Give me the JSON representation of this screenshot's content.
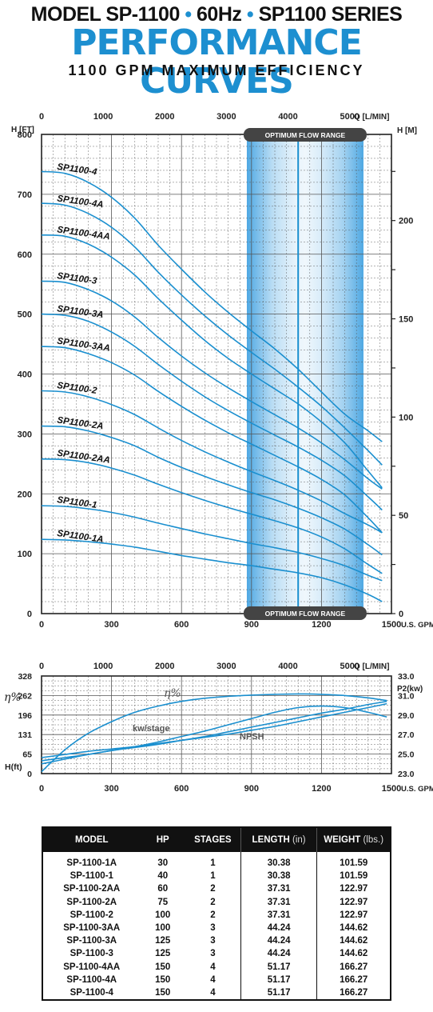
{
  "header": {
    "line1_a": "MODEL SP-1100",
    "line1_b": "60Hz",
    "line1_c": "SP1100 SERIES",
    "line1_sep": "•",
    "line2": "PERFORMANCE CURVES",
    "line3": "1100 GPM MAXIMUM EFFICIENCY"
  },
  "chart_data": [
    {
      "type": "line",
      "xlabel": "U.S. GPM",
      "x2label": "Q [L/MIN]",
      "ylabel": "H [FT]",
      "y2label": "H [M]",
      "xlim": [
        0,
        1500
      ],
      "x_ticks": [
        0,
        300,
        600,
        900,
        1200,
        1500
      ],
      "ylim": [
        0,
        800
      ],
      "y_ticks": [
        0,
        100,
        200,
        300,
        400,
        500,
        600,
        700,
        800
      ],
      "x2_ticks": [
        0,
        1000,
        2000,
        3000,
        4000,
        5000
      ],
      "y2_ticks": [
        0,
        50,
        100,
        150,
        200
      ],
      "optimum_flow_range": [
        880,
        1380
      ],
      "optimum_flow_line": 1100,
      "optimum_label": "OPTIMUM FLOW RANGE",
      "x": [
        0,
        100,
        200,
        300,
        400,
        500,
        600,
        700,
        800,
        900,
        1000,
        1100,
        1200,
        1300,
        1400,
        1460
      ],
      "series": [
        {
          "name": "SP1100-4",
          "values": [
            738,
            735,
            720,
            695,
            660,
            615,
            575,
            537,
            503,
            472,
            442,
            408,
            370,
            333,
            305,
            287
          ]
        },
        {
          "name": "SP1100-4A",
          "values": [
            685,
            682,
            668,
            645,
            612,
            570,
            532,
            497,
            465,
            436,
            408,
            378,
            346,
            310,
            272,
            248
          ]
        },
        {
          "name": "SP1100-4AA",
          "values": [
            632,
            630,
            617,
            595,
            565,
            526,
            490,
            456,
            426,
            400,
            375,
            350,
            320,
            285,
            238,
            210
          ]
        },
        {
          "name": "SP1100-3",
          "values": [
            555,
            553,
            541,
            522,
            495,
            461,
            430,
            402,
            377,
            354,
            332,
            310,
            285,
            257,
            225,
            208
          ]
        },
        {
          "name": "SP1100-3A",
          "values": [
            500,
            498,
            488,
            470,
            446,
            416,
            388,
            362,
            339,
            318,
            298,
            278,
            256,
            230,
            195,
            173
          ]
        },
        {
          "name": "SP1100-3AA",
          "values": [
            446,
            444,
            434,
            419,
            398,
            371,
            346,
            323,
            302,
            283,
            264,
            245,
            224,
            198,
            160,
            135
          ]
        },
        {
          "name": "SP1100-2",
          "values": [
            372,
            370,
            362,
            349,
            332,
            310,
            289,
            270,
            253,
            237,
            222,
            206,
            188,
            167,
            148,
            135
          ]
        },
        {
          "name": "SP1100-2A",
          "values": [
            313,
            312,
            305,
            294,
            280,
            261,
            244,
            229,
            215,
            202,
            190,
            176,
            160,
            141,
            115,
            98
          ]
        },
        {
          "name": "SP1100-2AA",
          "values": [
            258,
            257,
            252,
            243,
            231,
            216,
            202,
            189,
            177,
            166,
            155,
            143,
            128,
            108,
            82,
            67
          ]
        },
        {
          "name": "SP1100-1",
          "values": [
            180,
            179,
            175,
            169,
            161,
            151,
            142,
            133,
            125,
            117,
            110,
            102,
            92,
            80,
            64,
            55
          ]
        },
        {
          "name": "SP1100-1A",
          "values": [
            124,
            123,
            120,
            116,
            111,
            104,
            97,
            91,
            85,
            80,
            74,
            68,
            60,
            48,
            32,
            20
          ]
        }
      ]
    },
    {
      "type": "line",
      "xlabel": "U.S. GPM",
      "x2label": "Q [L/MIN]",
      "ylabel": "H(ft)",
      "y2label": "P2(kw)",
      "eta_label": "η%",
      "xlim": [
        0,
        1500
      ],
      "x_ticks": [
        0,
        300,
        600,
        900,
        1200,
        1500
      ],
      "x2_ticks": [
        0,
        1000,
        2000,
        3000,
        4000,
        5000
      ],
      "y_ticks": [
        "328",
        "262",
        "196",
        "131",
        "65",
        "0"
      ],
      "y2_ticks": [
        "33.0",
        "31.0",
        "29.0",
        "27.0",
        "25.0",
        "23.0"
      ],
      "labels": {
        "eta": "η%",
        "kw": "kw/stage",
        "npsh": "NPSH"
      },
      "x": [
        0,
        100,
        200,
        300,
        400,
        500,
        600,
        700,
        800,
        900,
        1000,
        1100,
        1200,
        1300,
        1400,
        1480
      ],
      "series": [
        {
          "name": "η%",
          "values": [
            0,
            0.28,
            0.49,
            0.64,
            0.76,
            0.84,
            0.9,
            0.94,
            0.965,
            0.98,
            0.99,
            0.995,
            0.99,
            0.975,
            0.945,
            0.91
          ]
        },
        {
          "name": "kw/stage",
          "values": [
            0.14,
            0.18,
            0.22,
            0.27,
            0.32,
            0.38,
            0.45,
            0.52,
            0.6,
            0.68,
            0.76,
            0.82,
            0.84,
            0.82,
            0.76,
            0.7
          ]
        },
        {
          "name": "NPSH",
          "values": [
            0.1,
            0.16,
            0.22,
            0.27,
            0.31,
            0.35,
            0.4,
            0.45,
            0.51,
            0.57,
            0.63,
            0.69,
            0.75,
            0.8,
            0.86,
            0.9
          ]
        },
        {
          "name": "H(ft)",
          "values": [
            0.18,
            0.22,
            0.26,
            0.29,
            0.32,
            0.36,
            0.4,
            0.44,
            0.48,
            0.53,
            0.58,
            0.64,
            0.7,
            0.76,
            0.82,
            0.87
          ]
        }
      ]
    }
  ],
  "spec_table": {
    "headers": [
      {
        "label": "MODEL",
        "unit": ""
      },
      {
        "label": "HP",
        "unit": ""
      },
      {
        "label": "STAGES",
        "unit": ""
      },
      {
        "label": "LENGTH",
        "unit": "(in)"
      },
      {
        "label": "WEIGHT",
        "unit": "(lbs.)"
      }
    ],
    "rows": [
      [
        "SP-1100-1A",
        "30",
        "1",
        "30.38",
        "101.59"
      ],
      [
        "SP-1100-1",
        "40",
        "1",
        "30.38",
        "101.59"
      ],
      [
        "SP-1100-2AA",
        "60",
        "2",
        "37.31",
        "122.97"
      ],
      [
        "SP-1100-2A",
        "75",
        "2",
        "37.31",
        "122.97"
      ],
      [
        "SP-1100-2",
        "100",
        "2",
        "37.31",
        "122.97"
      ],
      [
        "SP-1100-3AA",
        "100",
        "3",
        "44.24",
        "144.62"
      ],
      [
        "SP-1100-3A",
        "125",
        "3",
        "44.24",
        "144.62"
      ],
      [
        "SP-1100-3",
        "125",
        "3",
        "44.24",
        "144.62"
      ],
      [
        "SP-1100-4AA",
        "150",
        "4",
        "51.17",
        "166.27"
      ],
      [
        "SP-1100-4A",
        "150",
        "4",
        "51.17",
        "166.27"
      ],
      [
        "SP-1100-4",
        "150",
        "4",
        "51.17",
        "166.27"
      ]
    ]
  },
  "colors": {
    "curve": "#1a8fcf",
    "band": "#3a9ee0",
    "header": "#1d8fd0",
    "grid": "#555555"
  }
}
